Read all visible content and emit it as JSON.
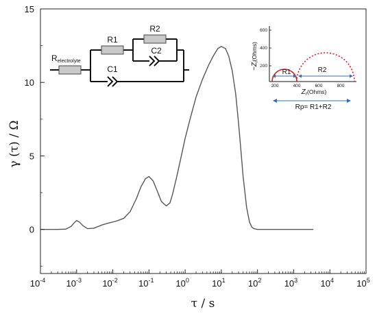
{
  "chart_data": {
    "type": "line",
    "title": "",
    "xlabel": "τ / s",
    "ylabel": "γ (τ) / Ω",
    "x_scale": "log",
    "xlim": [
      0.0001,
      100000
    ],
    "ylim": [
      -3,
      15
    ],
    "x_ticks": [
      {
        "value": 0.0001,
        "base": "10",
        "exp": "-4"
      },
      {
        "value": 0.001,
        "base": "10",
        "exp": "-3"
      },
      {
        "value": 0.01,
        "base": "10",
        "exp": "-2"
      },
      {
        "value": 0.1,
        "base": "10",
        "exp": "-1"
      },
      {
        "value": 1,
        "base": "10",
        "exp": "0"
      },
      {
        "value": 10,
        "base": "10",
        "exp": "1"
      },
      {
        "value": 100,
        "base": "10",
        "exp": "2"
      },
      {
        "value": 1000,
        "base": "10",
        "exp": "3"
      },
      {
        "value": 10000,
        "base": "10",
        "exp": "4"
      },
      {
        "value": 100000,
        "base": "10",
        "exp": "5"
      }
    ],
    "y_ticks": [
      0,
      5,
      10,
      15
    ],
    "grid": false,
    "series": [
      {
        "color": "#555555",
        "x": [
          0.0001,
          0.0002,
          0.0003,
          0.0005,
          0.0007,
          0.0009,
          0.001,
          0.0012,
          0.0015,
          0.002,
          0.003,
          0.005,
          0.008,
          0.012,
          0.02,
          0.03,
          0.045,
          0.06,
          0.08,
          0.1,
          0.13,
          0.17,
          0.22,
          0.3,
          0.38,
          0.45,
          0.6,
          0.8,
          1.0,
          1.4,
          2.0,
          3.0,
          4.5,
          6.0,
          8.0,
          10,
          13,
          16,
          20,
          25,
          30,
          35,
          40,
          50,
          60,
          70,
          80,
          90,
          100,
          150,
          300,
          1000,
          3500
        ],
        "y": [
          0,
          0,
          0,
          0.02,
          0.2,
          0.5,
          0.6,
          0.5,
          0.25,
          0.05,
          0.08,
          0.3,
          0.45,
          0.55,
          0.75,
          1.2,
          2.1,
          2.9,
          3.45,
          3.6,
          3.3,
          2.6,
          1.9,
          1.6,
          1.8,
          2.4,
          3.7,
          5.1,
          6.2,
          7.6,
          9.0,
          10.2,
          11.2,
          11.8,
          12.3,
          12.45,
          12.3,
          11.8,
          10.8,
          9.2,
          7.2,
          5.3,
          3.6,
          1.5,
          0.5,
          0.15,
          0.05,
          0.02,
          0,
          0,
          0,
          0,
          0
        ]
      }
    ],
    "annotations": {
      "circuit": {
        "electrolyte_label_main": "R",
        "electrolyte_label_sub": "electrolyte",
        "r1_label": "R1",
        "r2_label": "R2",
        "c1_label": "C1",
        "c2_label": "C2"
      },
      "inset": {
        "y_axis_label": "−Z",
        "y_axis_sub": "i",
        "y_axis_unit": "(Ohms)",
        "x_axis_label": "Z",
        "x_axis_sub": "r",
        "x_axis_unit": "(Ohms)",
        "y_ticks": [
          200,
          400,
          600
        ],
        "x_ticks": [
          200,
          400,
          600,
          800
        ],
        "r1_label": "R1",
        "r2_label": "R2",
        "rp_label": "Rp= R1+R2",
        "arc_color": "#d62020",
        "arrow_color": "#2f6db5"
      }
    }
  }
}
